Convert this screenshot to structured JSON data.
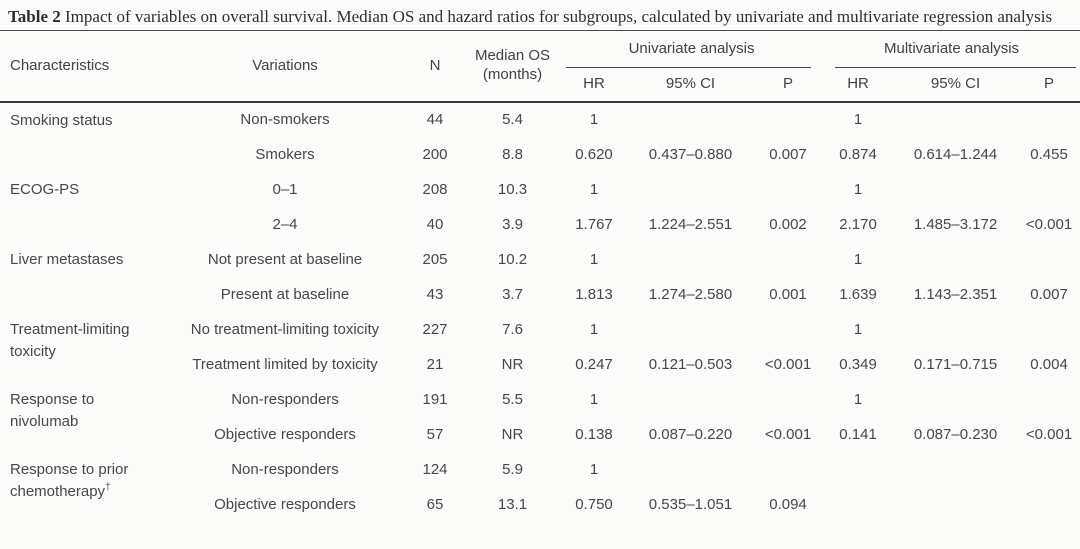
{
  "caption": {
    "label": "Table 2",
    "text": " Impact of variables on overall survival. Median OS and hazard ratios for subgroups, calculated by univariate and multivariate regression analysis"
  },
  "table": {
    "columns": {
      "characteristics": "Characteristics",
      "variations": "Variations",
      "n": "N",
      "median_os": "Median OS (months)",
      "univariate": "Univariate analysis",
      "multivariate": "Multivariate analysis",
      "hr": "HR",
      "ci": "95% CI",
      "p": "P"
    },
    "rows": [
      {
        "group": "Smoking status",
        "span": 2,
        "cells": [
          "Non-smokers",
          "44",
          "5.4",
          "1",
          "",
          "",
          "1",
          "",
          ""
        ]
      },
      {
        "cells": [
          "Smokers",
          "200",
          "8.8",
          "0.620",
          "0.437–0.880",
          "0.007",
          "0.874",
          "0.614–1.244",
          "0.455"
        ]
      },
      {
        "group": "ECOG-PS",
        "span": 2,
        "cells": [
          "0–1",
          "208",
          "10.3",
          "1",
          "",
          "",
          "1",
          "",
          ""
        ]
      },
      {
        "cells": [
          "2–4",
          "40",
          "3.9",
          "1.767",
          "1.224–2.551",
          "0.002",
          "2.170",
          "1.485–3.172",
          "<0.001"
        ]
      },
      {
        "group": "Liver metastases",
        "span": 2,
        "cells": [
          "Not present at baseline",
          "205",
          "10.2",
          "1",
          "",
          "",
          "1",
          "",
          ""
        ]
      },
      {
        "cells": [
          "Present at baseline",
          "43",
          "3.7",
          "1.813",
          "1.274–2.580",
          "0.001",
          "1.639",
          "1.143–2.351",
          "0.007"
        ]
      },
      {
        "group": "Treatment-limiting toxicity",
        "span": 2,
        "cells": [
          "No treatment-limiting toxicity",
          "227",
          "7.6",
          "1",
          "",
          "",
          "1",
          "",
          ""
        ]
      },
      {
        "cells": [
          "Treatment limited by toxicity",
          "21",
          "NR",
          "0.247",
          "0.121–0.503",
          "<0.001",
          "0.349",
          "0.171–0.715",
          "0.004"
        ]
      },
      {
        "group": "Response to nivolumab",
        "span": 2,
        "cells": [
          "Non-responders",
          "191",
          "5.5",
          "1",
          "",
          "",
          "1",
          "",
          ""
        ]
      },
      {
        "cells": [
          "Objective responders",
          "57",
          "NR",
          "0.138",
          "0.087–0.220",
          "<0.001",
          "0.141",
          "0.087–0.230",
          "<0.001"
        ]
      },
      {
        "group": "Response to prior chemotherapy",
        "group_sup": "†",
        "span": 2,
        "cells": [
          "Non-responders",
          "124",
          "5.9",
          "1",
          "",
          "",
          "",
          "",
          ""
        ]
      },
      {
        "cells": [
          "Objective responders",
          "65",
          "13.1",
          "0.750",
          "0.535–1.051",
          "0.094",
          "",
          "",
          ""
        ]
      }
    ]
  }
}
